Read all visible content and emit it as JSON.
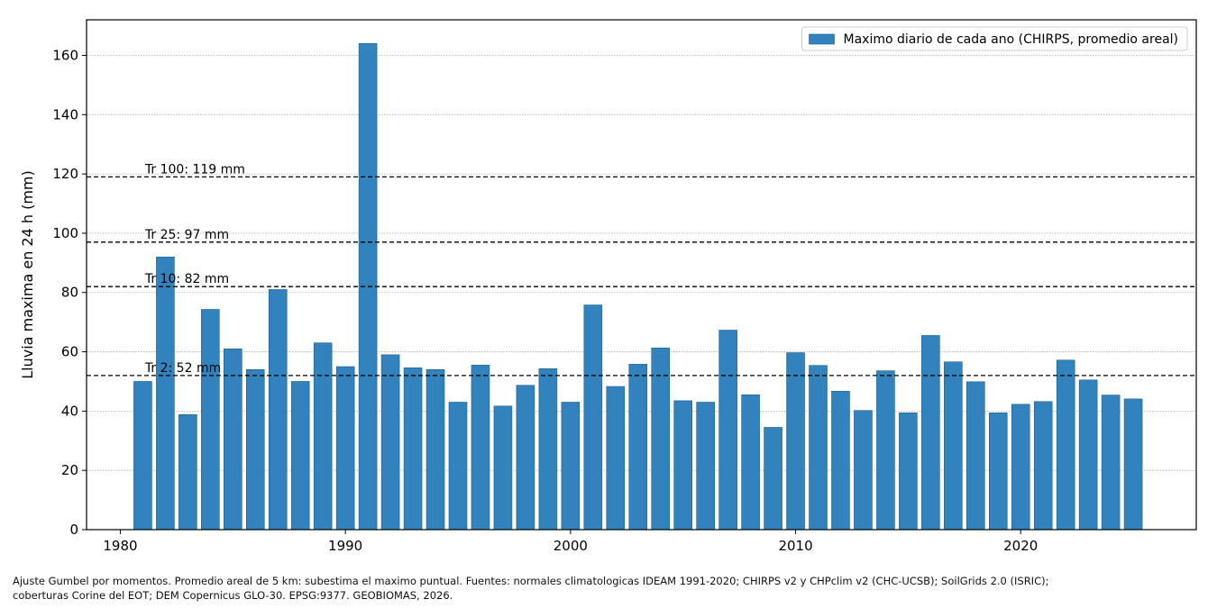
{
  "chart_data": {
    "type": "bar",
    "title": "",
    "xlabel": "",
    "ylabel": "Lluvia maxima en 24 h (mm)",
    "xlim": [
      1978.5,
      2027.8
    ],
    "ylim": [
      0,
      172
    ],
    "xticks": [
      1980,
      1990,
      2000,
      2010,
      2020
    ],
    "yticks": [
      0,
      20,
      40,
      60,
      80,
      100,
      120,
      140,
      160
    ],
    "grid": true,
    "legend_position": "top-right",
    "bar_color": "#3182bd",
    "bar_edge_color": "#1f5f8f",
    "series": [
      {
        "name": "Maximo diario de cada ano (CHIRPS, promedio areal)",
        "x": [
          1981,
          1982,
          1983,
          1984,
          1985,
          1986,
          1987,
          1988,
          1989,
          1990,
          1991,
          1992,
          1993,
          1994,
          1995,
          1996,
          1997,
          1998,
          1999,
          2000,
          2001,
          2002,
          2003,
          2004,
          2005,
          2006,
          2007,
          2008,
          2009,
          2010,
          2011,
          2012,
          2013,
          2014,
          2015,
          2016,
          2017,
          2018,
          2019,
          2020,
          2021,
          2022,
          2023,
          2024,
          2025
        ],
        "values": [
          50,
          92,
          38.8,
          74.3,
          61,
          54,
          81,
          50,
          63,
          55,
          164,
          59,
          54.6,
          54,
          43,
          55.5,
          41.7,
          48.7,
          54.3,
          43,
          75.8,
          48.3,
          55.8,
          61.3,
          43.5,
          43,
          67.3,
          45.5,
          34.5,
          59.7,
          55.4,
          46.7,
          40.2,
          53.6,
          39.4,
          65.5,
          56.6,
          49.9,
          39.4,
          42.3,
          43.2,
          57.2,
          50.5,
          45.4,
          44.1
        ]
      }
    ],
    "reference_lines": [
      {
        "label": "Tr 2: 52 mm",
        "value": 52
      },
      {
        "label": "Tr 10: 82 mm",
        "value": 82
      },
      {
        "label": "Tr 25: 97 mm",
        "value": 97
      },
      {
        "label": "Tr 100: 119 mm",
        "value": 119
      }
    ]
  },
  "caption": {
    "line1": "Ajuste Gumbel por momentos. Promedio areal de 5 km: subestima el maximo puntual. Fuentes: normales climatologicas IDEAM 1991-2020; CHIRPS v2 y CHPclim v2 (CHC-UCSB); SoilGrids 2.0 (ISRIC);",
    "line2": "coberturas Corine del EOT; DEM Copernicus GLO-30. EPSG:9377. GEOBIOMAS, 2026."
  }
}
